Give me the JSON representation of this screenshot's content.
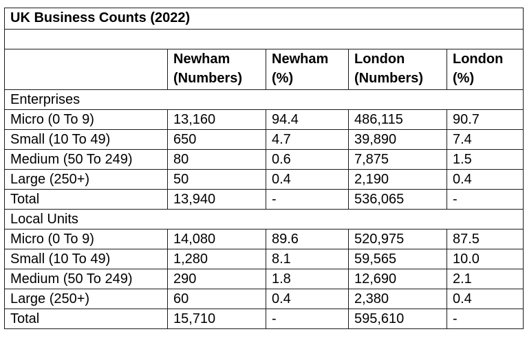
{
  "title": "UK Business Counts (2022)",
  "columns": {
    "c1": [
      "Newham",
      "(Numbers)"
    ],
    "c2": [
      "Newham",
      "(%)"
    ],
    "c3": [
      "London",
      "(Numbers)"
    ],
    "c4": [
      "London",
      "(%)"
    ]
  },
  "enterprises": {
    "label": "Enterprises",
    "rows": [
      {
        "label": "Micro (0 To 9)",
        "newham_n": "13,160",
        "newham_p": "94.4",
        "london_n": "486,115",
        "london_p": "90.7"
      },
      {
        "label": "Small (10 To 49)",
        "newham_n": "650",
        "newham_p": "4.7",
        "london_n": "39,890",
        "london_p": "7.4"
      },
      {
        "label": "Medium (50 To 249)",
        "newham_n": "80",
        "newham_p": "0.6",
        "london_n": "7,875",
        "london_p": "1.5"
      },
      {
        "label": "Large (250+)",
        "newham_n": "50",
        "newham_p": "0.4",
        "london_n": "2,190",
        "london_p": "0.4"
      },
      {
        "label": "Total",
        "newham_n": "13,940",
        "newham_p": "-",
        "london_n": "536,065",
        "london_p": "-"
      }
    ]
  },
  "local_units": {
    "label": "Local Units",
    "rows": [
      {
        "label": "Micro (0 To 9)",
        "newham_n": "14,080",
        "newham_p": "89.6",
        "london_n": "520,975",
        "london_p": "87.5"
      },
      {
        "label": "Small (10 To 49)",
        "newham_n": "1,280",
        "newham_p": "8.1",
        "london_n": "59,565",
        "london_p": "10.0"
      },
      {
        "label": "Medium (50 To 249)",
        "newham_n": "290",
        "newham_p": "1.8",
        "london_n": "12,690",
        "london_p": "2.1"
      },
      {
        "label": "Large (250+)",
        "newham_n": "60",
        "newham_p": "0.4",
        "london_n": "2,380",
        "london_p": "0.4"
      },
      {
        "label": "Total",
        "newham_n": "15,710",
        "newham_p": "-",
        "london_n": "595,610",
        "london_p": "-"
      }
    ]
  }
}
